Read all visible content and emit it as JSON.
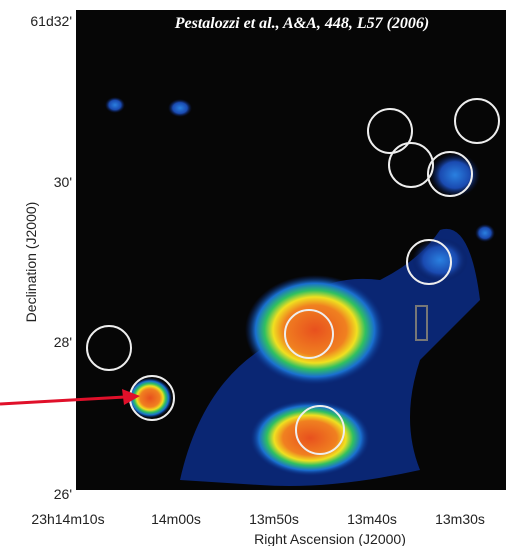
{
  "figure": {
    "citation": "Pestalozzi et al., A&A, 448, L57 (2006)",
    "y_axis": {
      "label": "Declination (J2000)",
      "ticks": [
        "61d32'",
        "30'",
        "28'",
        "26'"
      ]
    },
    "x_axis": {
      "label": "Right Ascension (J2000)",
      "ticks": [
        "23h14m10s",
        "14m00s",
        "13m50s",
        "13m40s",
        "13m30s"
      ]
    }
  }
}
